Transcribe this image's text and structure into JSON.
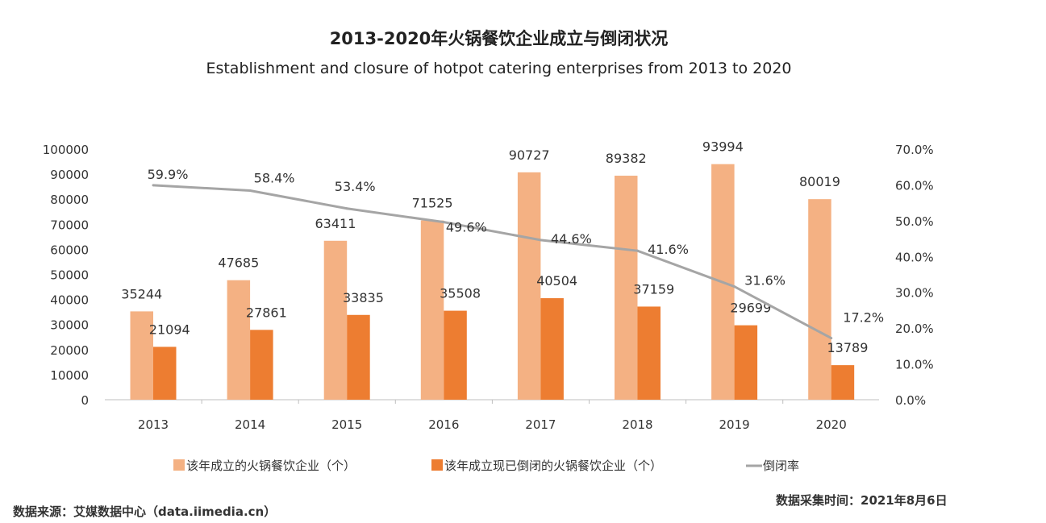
{
  "title": "2013-2020年火锅餐饮企业成立与倒闭状况",
  "subtitle": "Establishment and closure of hotpot catering enterprises from 2013 to 2020",
  "source": "数据来源：艾媒数据中心（data.iimedia.cn）",
  "collection_date": "数据采集时间：2021年8月6日",
  "chart_data": {
    "type": "bar",
    "categories": [
      "2013",
      "2014",
      "2015",
      "2016",
      "2017",
      "2018",
      "2019",
      "2020"
    ],
    "series": [
      {
        "name": "该年成立的火锅餐饮企业（个）",
        "type": "bar",
        "axis": "left",
        "color": "#f4b183",
        "values": [
          35244,
          47685,
          63411,
          71525,
          90727,
          89382,
          93994,
          80019
        ]
      },
      {
        "name": "该年成立现已倒闭的火锅餐饮企业（个）",
        "type": "bar",
        "axis": "left",
        "color": "#ed7d31",
        "values": [
          21094,
          27861,
          33835,
          35508,
          40504,
          37159,
          29699,
          13789
        ]
      },
      {
        "name": "倒闭率",
        "type": "line",
        "axis": "right",
        "color": "#a5a5a5",
        "values": [
          59.9,
          58.4,
          53.4,
          49.6,
          44.6,
          41.6,
          31.6,
          17.2
        ],
        "labels": [
          "59.9%",
          "58.4%",
          "53.4%",
          "49.6%",
          "44.6%",
          "41.6%",
          "31.6%",
          "17.2%"
        ]
      }
    ],
    "y_left": {
      "range": [
        0,
        100000
      ],
      "ticks": [
        "0",
        "10000",
        "20000",
        "30000",
        "40000",
        "50000",
        "60000",
        "70000",
        "80000",
        "90000",
        "100000"
      ]
    },
    "y_right": {
      "range": [
        0,
        70
      ],
      "ticks": [
        "0.0%",
        "10.0%",
        "20.0%",
        "30.0%",
        "40.0%",
        "50.0%",
        "60.0%",
        "70.0%"
      ]
    },
    "grid": false,
    "legend": "bottom"
  }
}
